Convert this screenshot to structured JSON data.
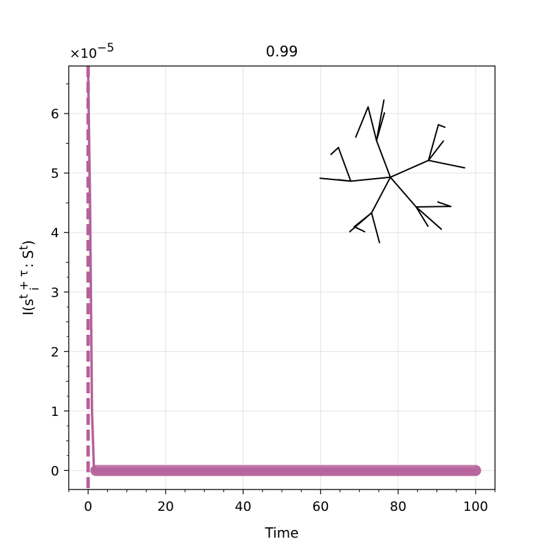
{
  "chart_data": {
    "type": "line",
    "title": "0.99",
    "xlabel": "Time",
    "ylabel": {
      "base": "I(s",
      "sub_i": "i",
      "sup_t": "t + τ",
      "mid": " : S",
      "sup_t2": "t",
      "end": ")"
    },
    "y_multiplier": {
      "base": "×10",
      "exponent": "−5"
    },
    "xlim": [
      -5,
      105
    ],
    "ylim": [
      -3.2e-06,
      6.8e-05
    ],
    "xticks": [
      0,
      20,
      40,
      60,
      80,
      100
    ],
    "xtick_labels": [
      "0",
      "20",
      "40",
      "60",
      "80",
      "100"
    ],
    "yticks": [
      0,
      1e-05,
      2e-05,
      3e-05,
      4e-05,
      5e-05,
      6e-05
    ],
    "ytick_labels": [
      "0",
      "1",
      "2",
      "3",
      "4",
      "5",
      "6"
    ],
    "grid": true,
    "series": [
      {
        "color": "#b5609a",
        "x": [
          0,
          0.5,
          1,
          1.5,
          2,
          3,
          5,
          10,
          20,
          30,
          40,
          50,
          60,
          70,
          80,
          90,
          100
        ],
        "y": [
          6.7e-05,
          4.5e-05,
          1e-05,
          2e-07,
          0,
          0,
          0,
          0,
          0,
          0,
          0,
          0,
          0,
          0,
          0,
          0,
          0
        ]
      }
    ],
    "vline": {
      "x": 0,
      "color": "#b5609a",
      "style": "dashed"
    },
    "inset_tree": {
      "color": "#000000",
      "nodes": [
        [
          0.0,
          0.0
        ],
        [
          -0.28,
          0.74
        ],
        [
          -0.8,
          -0.08
        ],
        [
          -0.38,
          -0.72
        ],
        [
          0.52,
          -0.6
        ],
        [
          0.77,
          0.34
        ],
        [
          -0.45,
          1.42
        ],
        [
          -0.12,
          1.3
        ],
        [
          -0.7,
          0.81
        ],
        [
          -0.13,
          1.56
        ],
        [
          -1.05,
          0.6
        ],
        [
          -1.2,
          0.46
        ],
        [
          -1.42,
          -0.02
        ],
        [
          -1.06,
          -0.05
        ],
        [
          -0.73,
          -1.0
        ],
        [
          -0.52,
          -1.1
        ],
        [
          -0.22,
          -1.32
        ],
        [
          -0.82,
          -1.1
        ],
        [
          0.76,
          -0.99
        ],
        [
          1.03,
          -1.05
        ],
        [
          1.22,
          -0.59
        ],
        [
          0.96,
          -0.5
        ],
        [
          0.97,
          1.06
        ],
        [
          1.1,
          1.01
        ],
        [
          1.07,
          0.73
        ],
        [
          1.5,
          0.19
        ]
      ],
      "edges": [
        [
          0,
          1
        ],
        [
          0,
          2
        ],
        [
          0,
          3
        ],
        [
          0,
          4
        ],
        [
          0,
          5
        ],
        [
          1,
          6
        ],
        [
          1,
          7
        ],
        [
          6,
          8
        ],
        [
          1,
          9
        ],
        [
          2,
          10
        ],
        [
          10,
          11
        ],
        [
          2,
          12
        ],
        [
          2,
          13
        ],
        [
          3,
          14
        ],
        [
          14,
          15
        ],
        [
          3,
          16
        ],
        [
          3,
          17
        ],
        [
          4,
          18
        ],
        [
          4,
          19
        ],
        [
          4,
          20
        ],
        [
          20,
          21
        ],
        [
          5,
          22
        ],
        [
          22,
          23
        ],
        [
          5,
          24
        ],
        [
          5,
          25
        ]
      ]
    }
  }
}
